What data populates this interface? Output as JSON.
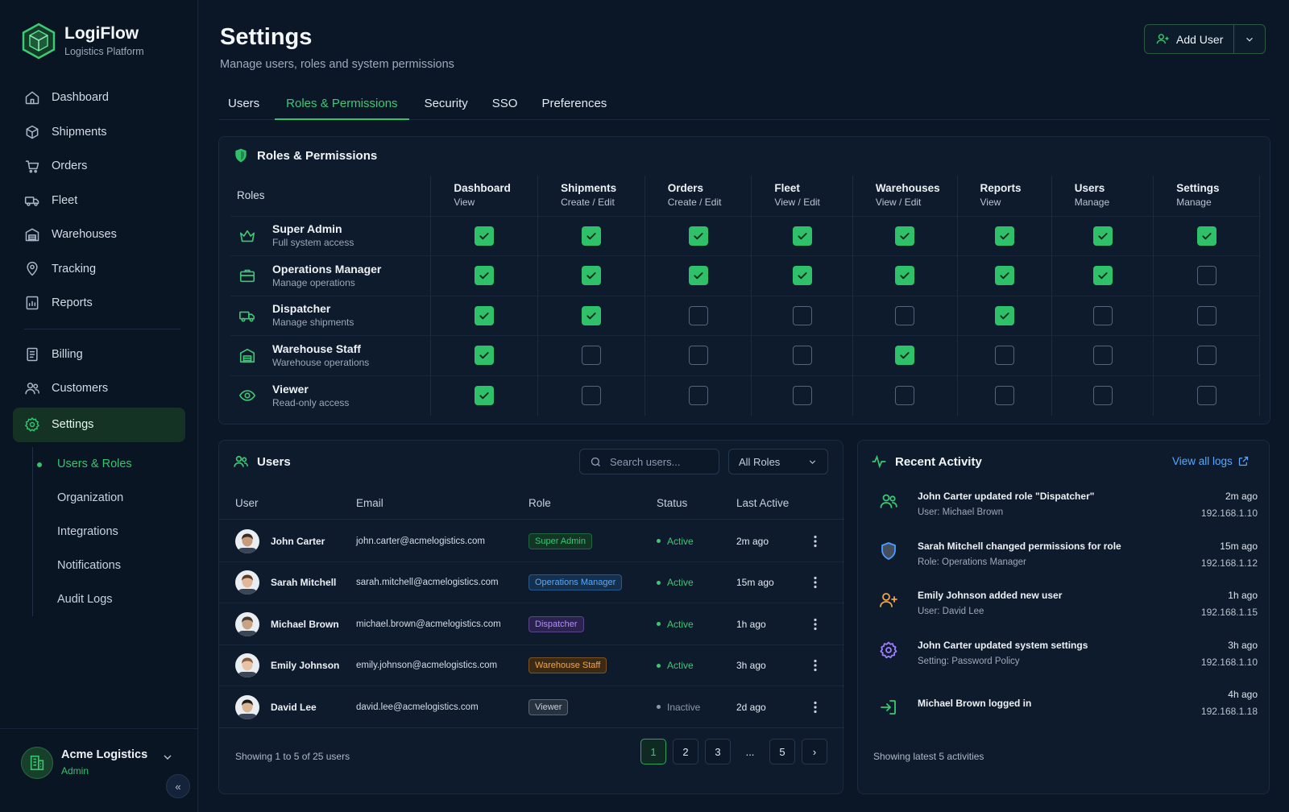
{
  "brand": {
    "name": "LogiFlow",
    "subtitle": "Logistics Platform"
  },
  "nav": {
    "items": [
      {
        "label": "Dashboard",
        "icon": "home-icon"
      },
      {
        "label": "Shipments",
        "icon": "box-icon"
      },
      {
        "label": "Orders",
        "icon": "cart-icon"
      },
      {
        "label": "Fleet",
        "icon": "truck-icon"
      },
      {
        "label": "Warehouses",
        "icon": "warehouse-icon"
      },
      {
        "label": "Tracking",
        "icon": "map-pin-icon"
      },
      {
        "label": "Reports",
        "icon": "report-icon"
      }
    ],
    "items2": [
      {
        "label": "Billing",
        "icon": "billing-icon"
      },
      {
        "label": "Customers",
        "icon": "customers-icon"
      }
    ],
    "settings_label": "Settings",
    "sub": [
      "Users & Roles",
      "Organization",
      "Integrations",
      "Notifications",
      "Audit Logs"
    ]
  },
  "org": {
    "name": "Acme Logistics",
    "role": "Admin",
    "collapse": "«"
  },
  "header": {
    "title": "Settings",
    "subtitle": "Manage users, roles and system permissions",
    "add_user": "Add User"
  },
  "tabs": [
    "Users",
    "Roles & Permissions",
    "Security",
    "SSO",
    "Preferences"
  ],
  "active_tab": "Roles & Permissions",
  "roles_panel": {
    "title": "Roles & Permissions",
    "roles_header": "Roles",
    "columns": [
      {
        "name": "Dashboard",
        "perm": "View"
      },
      {
        "name": "Shipments",
        "perm": "Create / Edit"
      },
      {
        "name": "Orders",
        "perm": "Create / Edit"
      },
      {
        "name": "Fleet",
        "perm": "View / Edit"
      },
      {
        "name": "Warehouses",
        "perm": "View / Edit"
      },
      {
        "name": "Reports",
        "perm": "View"
      },
      {
        "name": "Users",
        "perm": "Manage"
      },
      {
        "name": "Settings",
        "perm": "Manage"
      }
    ],
    "roles": [
      {
        "name": "Super Admin",
        "desc": "Full system access",
        "icon": "crown-icon",
        "perms": [
          true,
          true,
          true,
          true,
          true,
          true,
          true,
          true
        ]
      },
      {
        "name": "Operations Manager",
        "desc": "Manage operations",
        "icon": "briefcase-icon",
        "perms": [
          true,
          true,
          true,
          true,
          true,
          true,
          true,
          false
        ]
      },
      {
        "name": "Dispatcher",
        "desc": "Manage shipments",
        "icon": "truck-icon",
        "perms": [
          true,
          true,
          false,
          false,
          false,
          true,
          false,
          false
        ]
      },
      {
        "name": "Warehouse Staff",
        "desc": "Warehouse operations",
        "icon": "warehouse-icon",
        "perms": [
          true,
          false,
          false,
          false,
          true,
          false,
          false,
          false
        ]
      },
      {
        "name": "Viewer",
        "desc": "Read-only access",
        "icon": "eye-icon",
        "perms": [
          true,
          false,
          false,
          false,
          false,
          false,
          false,
          false
        ]
      }
    ]
  },
  "users_panel": {
    "title": "Users",
    "search_placeholder": "Search users...",
    "role_filter": "All Roles",
    "headers": {
      "user": "User",
      "email": "Email",
      "role": "Role",
      "status": "Status",
      "last": "Last Active"
    },
    "rows": [
      {
        "name": "John Carter",
        "email": "john.carter@acmelogistics.com",
        "role": "Super Admin",
        "role_color": "#3cc873",
        "role_bg": "#123526",
        "status": "Active",
        "status_color": "#3cc873",
        "last": "2m ago",
        "skin": "#c89b7b",
        "hair": "#3a2a20"
      },
      {
        "name": "Sarah Mitchell",
        "email": "sarah.mitchell@acmelogistics.com",
        "role": "Operations Manager",
        "role_color": "#5aa8ff",
        "role_bg": "#13304f",
        "status": "Active",
        "status_color": "#3cc873",
        "last": "15m ago",
        "skin": "#e2b89a",
        "hair": "#5b3a26"
      },
      {
        "name": "Michael Brown",
        "email": "michael.brown@acmelogistics.com",
        "role": "Dispatcher",
        "role_color": "#b18cff",
        "role_bg": "#2c2250",
        "status": "Active",
        "status_color": "#3cc873",
        "last": "1h ago",
        "skin": "#c9a283",
        "hair": "#4a3a30"
      },
      {
        "name": "Emily Johnson",
        "email": "emily.johnson@acmelogistics.com",
        "role": "Warehouse Staff",
        "role_color": "#f0a54a",
        "role_bg": "#3d2a14",
        "status": "Active",
        "status_color": "#3cc873",
        "last": "3h ago",
        "skin": "#e8c3a6",
        "hair": "#8a5a3a"
      },
      {
        "name": "David Lee",
        "email": "david.lee@acmelogistics.com",
        "role": "Viewer",
        "role_color": "#c6ceda",
        "role_bg": "#27323f",
        "status": "Inactive",
        "status_color": "#8d99a8",
        "last": "2d ago",
        "skin": "#d9b593",
        "hair": "#1f1a18"
      }
    ],
    "footer": "Showing 1 to 5 of 25 users",
    "pages": [
      "1",
      "2",
      "3",
      "...",
      "5"
    ],
    "current_page": "1",
    "next_label": "›"
  },
  "activity_panel": {
    "title": "Recent Activity",
    "view_all": "View all logs",
    "items": [
      {
        "title": "John Carter updated role \"Dispatcher\"",
        "sub": "User: Michael Brown",
        "time": "2m ago",
        "ip": "192.168.1.10",
        "icon": "users-icon",
        "color": "#3cc873"
      },
      {
        "title": "Sarah Mitchell changed permissions for role",
        "sub": "Role: Operations Manager",
        "time": "15m ago",
        "ip": "192.168.1.12",
        "icon": "shield-icon",
        "color": "#4a9dff"
      },
      {
        "title": "Emily Johnson added new user",
        "sub": "User: David Lee",
        "time": "1h ago",
        "ip": "192.168.1.15",
        "icon": "user-plus-icon",
        "color": "#f0a54a"
      },
      {
        "title": "John Carter updated system settings",
        "sub": "Setting: Password Policy",
        "time": "3h ago",
        "ip": "192.168.1.10",
        "icon": "gear-icon",
        "color": "#a27dff"
      },
      {
        "title": "Michael Brown logged in",
        "sub": "",
        "time": "4h ago",
        "ip": "192.168.1.18",
        "icon": "login-icon",
        "color": "#3cc873"
      }
    ],
    "footer": "Showing latest 5 activities"
  }
}
